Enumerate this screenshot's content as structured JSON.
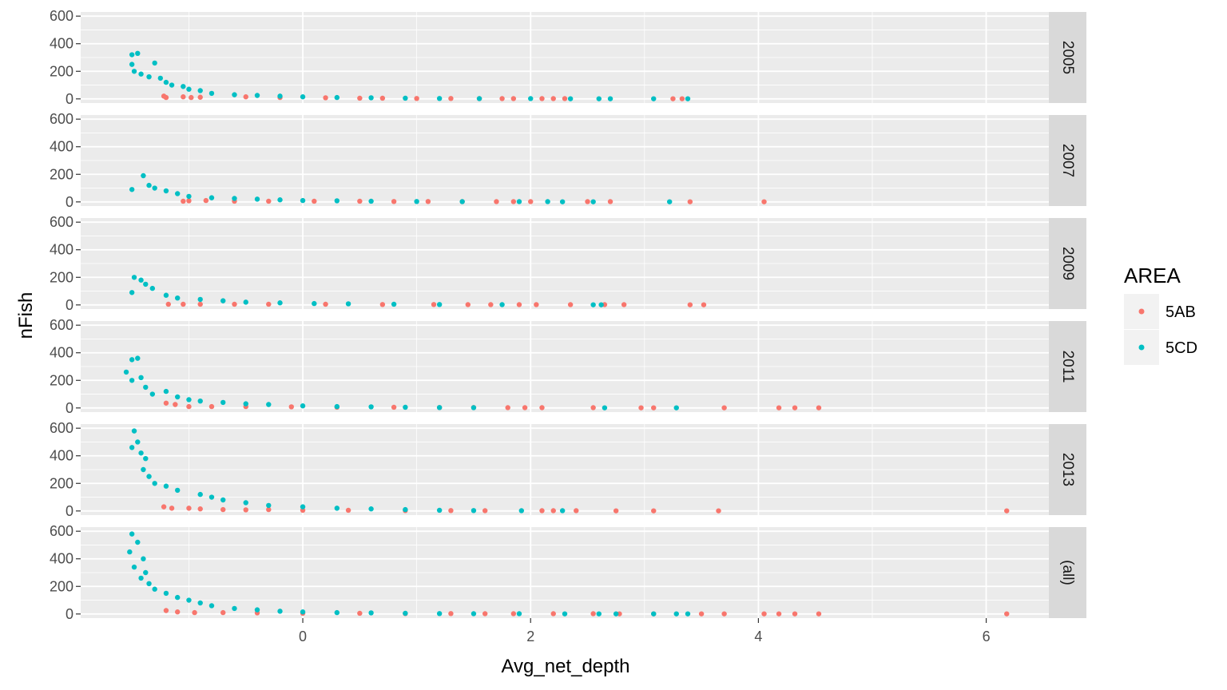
{
  "chart_data": {
    "type": "scatter",
    "xlabel": "Avg_net_depth",
    "ylabel": "nFish",
    "xlim": [
      -1.95,
      6.55
    ],
    "ylim": [
      -30,
      630
    ],
    "x_ticks": [
      0,
      2,
      4,
      6
    ],
    "y_ticks": [
      0,
      200,
      400,
      600
    ],
    "grid": true,
    "facet_by": "year",
    "facets": [
      "2005",
      "2007",
      "2009",
      "2011",
      "2013",
      "(all)"
    ],
    "legend": {
      "title": "AREA",
      "position": "right",
      "entries": [
        {
          "name": "5AB",
          "color": "#F8766D"
        },
        {
          "name": "5CD",
          "color": "#00BFC4"
        }
      ]
    },
    "series": [
      {
        "name": "5AB",
        "color": "#F8766D",
        "points": {
          "2005": [
            [
              -1.22,
              20
            ],
            [
              -1.2,
              10
            ],
            [
              -1.05,
              15
            ],
            [
              -0.98,
              10
            ],
            [
              -0.9,
              12
            ],
            [
              -0.5,
              15
            ],
            [
              -0.2,
              10
            ],
            [
              0.2,
              8
            ],
            [
              0.5,
              5
            ],
            [
              0.7,
              5
            ],
            [
              1.0,
              3
            ],
            [
              1.3,
              3
            ],
            [
              1.55,
              2
            ],
            [
              1.75,
              2
            ],
            [
              1.85,
              2
            ],
            [
              2.1,
              2
            ],
            [
              2.2,
              2
            ],
            [
              2.3,
              2
            ],
            [
              3.25,
              1
            ],
            [
              3.33,
              1
            ]
          ],
          "2007": [
            [
              -1.05,
              5
            ],
            [
              -1.0,
              8
            ],
            [
              -0.85,
              10
            ],
            [
              -0.6,
              5
            ],
            [
              -0.3,
              5
            ],
            [
              0.1,
              5
            ],
            [
              0.5,
              5
            ],
            [
              0.8,
              3
            ],
            [
              1.1,
              3
            ],
            [
              1.4,
              2
            ],
            [
              1.7,
              2
            ],
            [
              1.85,
              2
            ],
            [
              2.0,
              2
            ],
            [
              2.5,
              2
            ],
            [
              2.7,
              2
            ],
            [
              3.4,
              1
            ],
            [
              4.05,
              1
            ]
          ],
          "2009": [
            [
              -1.18,
              5
            ],
            [
              -1.05,
              5
            ],
            [
              -0.9,
              5
            ],
            [
              -0.6,
              5
            ],
            [
              -0.3,
              5
            ],
            [
              0.2,
              5
            ],
            [
              0.7,
              3
            ],
            [
              1.15,
              3
            ],
            [
              1.45,
              2
            ],
            [
              1.65,
              2
            ],
            [
              1.9,
              2
            ],
            [
              2.05,
              2
            ],
            [
              2.35,
              2
            ],
            [
              2.65,
              2
            ],
            [
              2.82,
              2
            ],
            [
              3.4,
              1
            ],
            [
              3.52,
              1
            ]
          ],
          "2011": [
            [
              -1.2,
              35
            ],
            [
              -1.12,
              25
            ],
            [
              -1.0,
              10
            ],
            [
              -0.8,
              10
            ],
            [
              -0.5,
              10
            ],
            [
              -0.1,
              8
            ],
            [
              0.3,
              5
            ],
            [
              0.8,
              5
            ],
            [
              1.2,
              3
            ],
            [
              1.5,
              3
            ],
            [
              1.8,
              2
            ],
            [
              1.95,
              2
            ],
            [
              2.1,
              2
            ],
            [
              2.55,
              2
            ],
            [
              2.97,
              1
            ],
            [
              3.08,
              1
            ],
            [
              3.7,
              1
            ],
            [
              4.18,
              1
            ],
            [
              4.32,
              1
            ],
            [
              4.53,
              1
            ]
          ],
          "2013": [
            [
              -1.22,
              30
            ],
            [
              -1.15,
              20
            ],
            [
              -1.0,
              20
            ],
            [
              -0.9,
              15
            ],
            [
              -0.7,
              10
            ],
            [
              -0.5,
              8
            ],
            [
              -0.3,
              10
            ],
            [
              0.0,
              5
            ],
            [
              0.4,
              5
            ],
            [
              0.9,
              3
            ],
            [
              1.3,
              3
            ],
            [
              1.6,
              2
            ],
            [
              2.1,
              2
            ],
            [
              2.2,
              2
            ],
            [
              2.4,
              2
            ],
            [
              2.75,
              1
            ],
            [
              3.08,
              1
            ],
            [
              3.65,
              1
            ],
            [
              6.18,
              1
            ]
          ],
          "(all)": [
            [
              -1.2,
              25
            ],
            [
              -1.1,
              15
            ],
            [
              -0.95,
              10
            ],
            [
              -0.7,
              10
            ],
            [
              -0.4,
              8
            ],
            [
              0.0,
              5
            ],
            [
              0.5,
              5
            ],
            [
              0.9,
              3
            ],
            [
              1.3,
              3
            ],
            [
              1.6,
              2
            ],
            [
              1.85,
              2
            ],
            [
              2.2,
              2
            ],
            [
              2.55,
              2
            ],
            [
              2.78,
              1
            ],
            [
              3.08,
              1
            ],
            [
              3.5,
              1
            ],
            [
              3.7,
              1
            ],
            [
              4.05,
              1
            ],
            [
              4.18,
              1
            ],
            [
              4.32,
              1
            ],
            [
              4.53,
              1
            ],
            [
              6.18,
              1
            ]
          ]
        }
      },
      {
        "name": "5CD",
        "color": "#00BFC4",
        "points": {
          "2005": [
            [
              -1.5,
              320
            ],
            [
              -1.45,
              330
            ],
            [
              -1.5,
              250
            ],
            [
              -1.48,
              200
            ],
            [
              -1.42,
              180
            ],
            [
              -1.35,
              160
            ],
            [
              -1.3,
              260
            ],
            [
              -1.25,
              150
            ],
            [
              -1.2,
              120
            ],
            [
              -1.15,
              100
            ],
            [
              -1.05,
              90
            ],
            [
              -1.0,
              70
            ],
            [
              -0.9,
              60
            ],
            [
              -0.8,
              40
            ],
            [
              -0.6,
              30
            ],
            [
              -0.4,
              25
            ],
            [
              -0.2,
              20
            ],
            [
              0.0,
              15
            ],
            [
              0.3,
              10
            ],
            [
              0.6,
              8
            ],
            [
              0.9,
              5
            ],
            [
              1.2,
              3
            ],
            [
              1.55,
              2
            ],
            [
              2.0,
              2
            ],
            [
              2.35,
              1
            ],
            [
              2.6,
              1
            ],
            [
              2.7,
              1
            ],
            [
              3.08,
              1
            ],
            [
              3.38,
              1
            ]
          ],
          "2007": [
            [
              -1.5,
              90
            ],
            [
              -1.4,
              190
            ],
            [
              -1.35,
              120
            ],
            [
              -1.3,
              100
            ],
            [
              -1.2,
              80
            ],
            [
              -1.1,
              60
            ],
            [
              -1.0,
              40
            ],
            [
              -0.8,
              30
            ],
            [
              -0.6,
              25
            ],
            [
              -0.4,
              20
            ],
            [
              -0.2,
              15
            ],
            [
              0.0,
              10
            ],
            [
              0.3,
              8
            ],
            [
              0.6,
              5
            ],
            [
              1.0,
              3
            ],
            [
              1.4,
              2
            ],
            [
              1.9,
              2
            ],
            [
              2.15,
              2
            ],
            [
              2.28,
              1
            ],
            [
              2.55,
              1
            ],
            [
              3.22,
              1
            ]
          ],
          "2009": [
            [
              -1.5,
              90
            ],
            [
              -1.48,
              200
            ],
            [
              -1.42,
              180
            ],
            [
              -1.38,
              150
            ],
            [
              -1.32,
              120
            ],
            [
              -1.2,
              70
            ],
            [
              -1.1,
              50
            ],
            [
              -0.9,
              40
            ],
            [
              -0.7,
              30
            ],
            [
              -0.5,
              20
            ],
            [
              -0.2,
              15
            ],
            [
              0.1,
              10
            ],
            [
              0.4,
              8
            ],
            [
              0.8,
              5
            ],
            [
              1.2,
              3
            ],
            [
              1.75,
              2
            ],
            [
              2.55,
              1
            ],
            [
              2.62,
              1
            ]
          ],
          "2011": [
            [
              -1.55,
              260
            ],
            [
              -1.5,
              350
            ],
            [
              -1.45,
              360
            ],
            [
              -1.5,
              200
            ],
            [
              -1.42,
              220
            ],
            [
              -1.38,
              150
            ],
            [
              -1.32,
              100
            ],
            [
              -1.2,
              120
            ],
            [
              -1.1,
              80
            ],
            [
              -1.0,
              60
            ],
            [
              -0.9,
              50
            ],
            [
              -0.7,
              40
            ],
            [
              -0.5,
              30
            ],
            [
              -0.3,
              25
            ],
            [
              0.0,
              15
            ],
            [
              0.3,
              10
            ],
            [
              0.6,
              8
            ],
            [
              0.9,
              5
            ],
            [
              1.2,
              3
            ],
            [
              1.5,
              2
            ],
            [
              2.65,
              1
            ],
            [
              3.28,
              1
            ]
          ],
          "2013": [
            [
              -1.48,
              580
            ],
            [
              -1.45,
              500
            ],
            [
              -1.5,
              460
            ],
            [
              -1.42,
              420
            ],
            [
              -1.38,
              380
            ],
            [
              -1.4,
              300
            ],
            [
              -1.35,
              250
            ],
            [
              -1.3,
              200
            ],
            [
              -1.2,
              180
            ],
            [
              -1.1,
              150
            ],
            [
              -0.9,
              120
            ],
            [
              -0.8,
              100
            ],
            [
              -0.7,
              80
            ],
            [
              -0.5,
              60
            ],
            [
              -0.3,
              40
            ],
            [
              0.0,
              30
            ],
            [
              0.3,
              20
            ],
            [
              0.6,
              15
            ],
            [
              0.9,
              10
            ],
            [
              1.2,
              5
            ],
            [
              1.5,
              3
            ],
            [
              1.92,
              2
            ],
            [
              2.28,
              2
            ]
          ],
          "(all)": [
            [
              -1.5,
              580
            ],
            [
              -1.45,
              520
            ],
            [
              -1.52,
              450
            ],
            [
              -1.4,
              400
            ],
            [
              -1.48,
              340
            ],
            [
              -1.38,
              300
            ],
            [
              -1.42,
              260
            ],
            [
              -1.35,
              220
            ],
            [
              -1.3,
              180
            ],
            [
              -1.2,
              150
            ],
            [
              -1.1,
              120
            ],
            [
              -1.0,
              100
            ],
            [
              -0.9,
              80
            ],
            [
              -0.8,
              60
            ],
            [
              -0.6,
              40
            ],
            [
              -0.4,
              30
            ],
            [
              -0.2,
              20
            ],
            [
              0.0,
              15
            ],
            [
              0.3,
              10
            ],
            [
              0.6,
              8
            ],
            [
              0.9,
              5
            ],
            [
              1.2,
              3
            ],
            [
              1.5,
              2
            ],
            [
              1.9,
              2
            ],
            [
              2.3,
              1
            ],
            [
              2.6,
              1
            ],
            [
              2.75,
              1
            ],
            [
              3.08,
              1
            ],
            [
              3.28,
              1
            ],
            [
              3.38,
              1
            ]
          ]
        }
      }
    ]
  }
}
